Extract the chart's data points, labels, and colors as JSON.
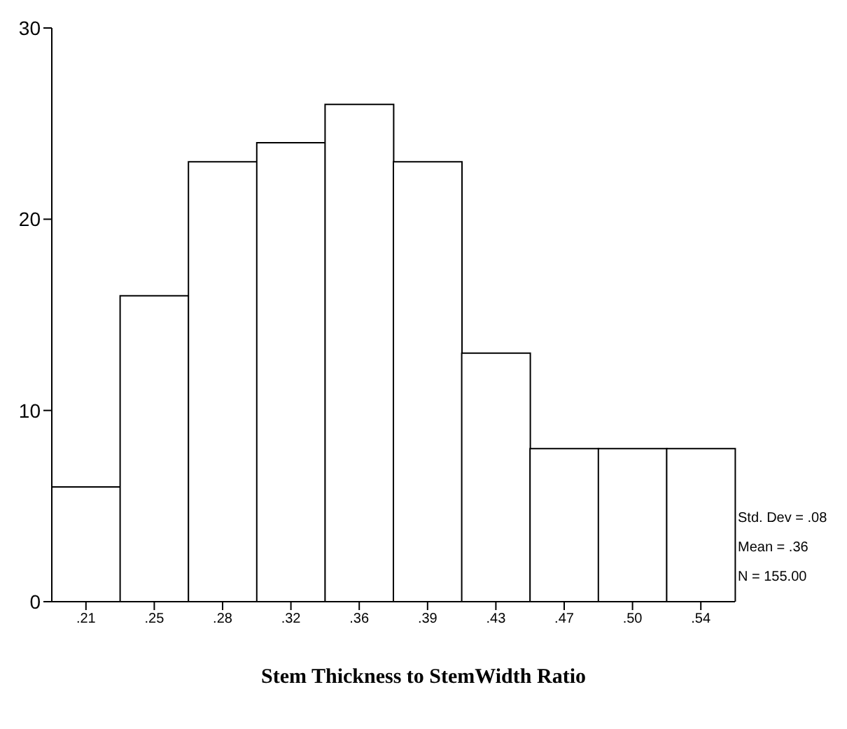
{
  "chart_data": {
    "type": "bar",
    "xlabel": "Stem Thickness to StemWidth Ratio",
    "categories": [
      ".21",
      ".25",
      ".28",
      ".32",
      ".36",
      ".39",
      ".43",
      ".47",
      ".50",
      ".54"
    ],
    "values": [
      6,
      16,
      23,
      24,
      26,
      23,
      13,
      8,
      8,
      8
    ],
    "color": "#ffffff",
    "ylim": [
      0,
      30
    ],
    "yticks": [
      0,
      10,
      20,
      30
    ],
    "grid": false,
    "annotations": [
      "Std. Dev = .08",
      "Mean = .36",
      "N = 155.00"
    ]
  }
}
